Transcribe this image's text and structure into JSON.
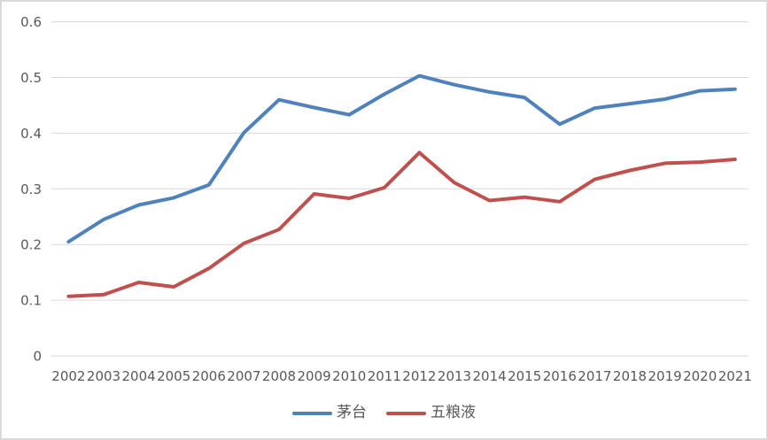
{
  "chart_data": {
    "type": "line",
    "title": "",
    "xlabel": "",
    "ylabel": "",
    "categories": [
      "2002",
      "2003",
      "2004",
      "2005",
      "2006",
      "2007",
      "2008",
      "2009",
      "2010",
      "2011",
      "2012",
      "2013",
      "2014",
      "2015",
      "2016",
      "2017",
      "2018",
      "2019",
      "2020",
      "2021"
    ],
    "series": [
      {
        "name": "茅台",
        "color": "#4F81BD",
        "values": [
          0.205,
          0.245,
          0.271,
          0.284,
          0.307,
          0.401,
          0.46,
          0.446,
          0.433,
          0.47,
          0.503,
          0.487,
          0.474,
          0.464,
          0.416,
          0.445,
          0.453,
          0.461,
          0.476,
          0.479
        ]
      },
      {
        "name": "五粮液",
        "color": "#C0504D",
        "values": [
          0.107,
          0.11,
          0.132,
          0.124,
          0.157,
          0.202,
          0.227,
          0.291,
          0.283,
          0.302,
          0.365,
          0.311,
          0.279,
          0.285,
          0.277,
          0.317,
          0.333,
          0.346,
          0.348,
          0.353
        ]
      }
    ],
    "ylim": [
      0,
      0.6
    ],
    "yticks": [
      "0",
      "0.1",
      "0.2",
      "0.3",
      "0.4",
      "0.5",
      "0.6"
    ],
    "grid": "horizontal",
    "legend_position": "bottom",
    "axis_label_color": "#595959",
    "gridline_color": "#D9D9D9",
    "frame_border_color": "#D9D9D9"
  }
}
